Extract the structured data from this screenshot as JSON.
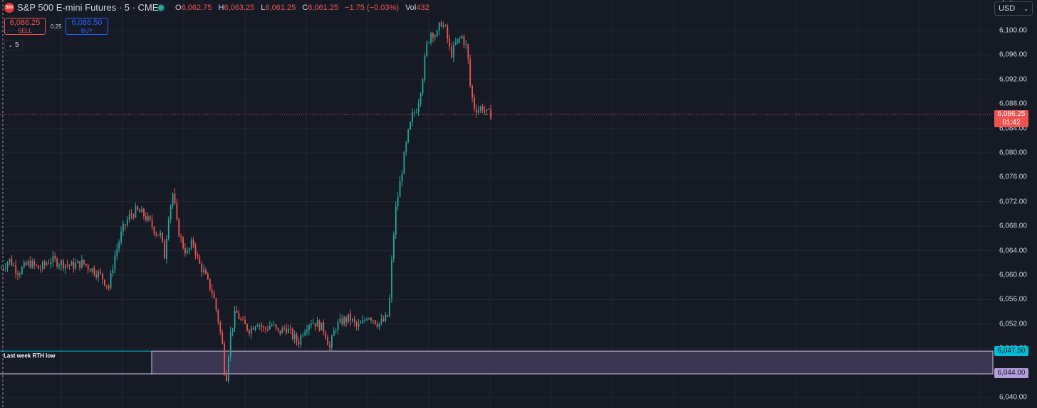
{
  "header": {
    "symbol_logo": "500",
    "title": "S&P 500 E-mini Futures · 5 · CME",
    "ohlc": {
      "o_key": "O",
      "o": "6,062.75",
      "h_key": "H",
      "h": "6,063.25",
      "l_key": "L",
      "l": "6,061.25",
      "c_key": "C",
      "c": "6,061.25",
      "change": "−1.75 (−0.03%)",
      "vol_key": "Vol",
      "vol": "432"
    }
  },
  "trade": {
    "sell_price": "6,086.25",
    "sell_label": "SELL",
    "buy_price": "6,086.50",
    "buy_label": "BUY",
    "spread": "0.25"
  },
  "interval_pill": {
    "icon": "chevron-down-icon",
    "value": "5"
  },
  "currency": {
    "selected": "USD",
    "icon": "chevron-down-icon"
  },
  "colors": {
    "up": "#26a69a",
    "down": "#ef5350",
    "background": "#161a25",
    "grid": "#232632",
    "zone_fill": "#3b3651",
    "zone_border": "#d1c4e9",
    "cyan": "#00bcd4",
    "lavender": "#b39ddb"
  },
  "price_axis": {
    "ticks": [
      "6,100.00",
      "6,096.00",
      "6,092.00",
      "6,088.00",
      "6,084.00",
      "6,080.00",
      "6,076.00",
      "6,072.00",
      "6,068.00",
      "6,064.00",
      "6,060.00",
      "6,056.00",
      "6,052.00",
      "6,048.00",
      "6,044.00",
      "6,040.00"
    ]
  },
  "current_price": {
    "price": "6,086.25",
    "countdown": "01:42"
  },
  "zone": {
    "label": "Last week RTH low",
    "upper_tag": "6,047.50",
    "lower_tag": "6,044.00"
  },
  "chart_data": {
    "type": "candlestick",
    "instrument": "S&P 500 E-mini Futures",
    "interval": "5",
    "exchange": "CME",
    "ylim": [
      6038.5,
      6105
    ],
    "last_price": 6086.25,
    "horizontal_levels": [
      6047.5,
      6044.0
    ],
    "close_path": [
      [
        0,
        6061.0
      ],
      [
        12,
        6062.5
      ],
      [
        25,
        6060.5
      ],
      [
        40,
        6062.0
      ],
      [
        55,
        6061.0
      ],
      [
        70,
        6062.5
      ],
      [
        85,
        6062.0
      ],
      [
        100,
        6061.5
      ],
      [
        115,
        6062.0
      ],
      [
        128,
        6061.0
      ],
      [
        140,
        6060.0
      ],
      [
        152,
        6058.0
      ],
      [
        160,
        6063.0
      ],
      [
        170,
        6067.0
      ],
      [
        180,
        6069.5
      ],
      [
        190,
        6070.5
      ],
      [
        200,
        6070.0
      ],
      [
        210,
        6068.5
      ],
      [
        218,
        6067.0
      ],
      [
        225,
        6066.5
      ],
      [
        230,
        6063.0
      ],
      [
        236,
        6070.0
      ],
      [
        242,
        6073.5
      ],
      [
        248,
        6068.0
      ],
      [
        255,
        6065.0
      ],
      [
        262,
        6063.5
      ],
      [
        270,
        6065.5
      ],
      [
        278,
        6062.0
      ],
      [
        285,
        6060.5
      ],
      [
        292,
        6058.5
      ],
      [
        298,
        6057.0
      ],
      [
        305,
        6053.0
      ],
      [
        312,
        6048.0
      ],
      [
        316,
        6042.0
      ],
      [
        322,
        6050.0
      ],
      [
        330,
        6054.0
      ],
      [
        340,
        6052.0
      ],
      [
        350,
        6051.0
      ],
      [
        360,
        6052.5
      ],
      [
        370,
        6051.0
      ],
      [
        380,
        6052.0
      ],
      [
        390,
        6050.5
      ],
      [
        400,
        6051.5
      ],
      [
        410,
        6050.0
      ],
      [
        418,
        6049.0
      ],
      [
        425,
        6051.0
      ],
      [
        435,
        6052.5
      ],
      [
        445,
        6052.0
      ],
      [
        455,
        6051.0
      ],
      [
        462,
        6048.0
      ],
      [
        470,
        6051.5
      ],
      [
        480,
        6052.5
      ],
      [
        490,
        6053.0
      ],
      [
        500,
        6051.5
      ],
      [
        508,
        6052.0
      ],
      [
        515,
        6053.5
      ],
      [
        522,
        6053.0
      ],
      [
        530,
        6052.0
      ],
      [
        538,
        6052.5
      ],
      [
        545,
        6053.5
      ],
      [
        550,
        6064.0
      ],
      [
        555,
        6071.0
      ],
      [
        560,
        6074.5
      ],
      [
        566,
        6079.0
      ],
      [
        572,
        6083.0
      ],
      [
        578,
        6086.0
      ],
      [
        585,
        6087.5
      ],
      [
        592,
        6092.0
      ],
      [
        598,
        6097.5
      ],
      [
        605,
        6100.0
      ],
      [
        612,
        6099.0
      ],
      [
        618,
        6101.5
      ],
      [
        625,
        6100.0
      ],
      [
        632,
        6096.0
      ],
      [
        640,
        6098.0
      ],
      [
        648,
        6099.0
      ],
      [
        655,
        6097.0
      ],
      [
        660,
        6090.0
      ],
      [
        665,
        6087.5
      ],
      [
        670,
        6087.0
      ],
      [
        676,
        6087.5
      ],
      [
        682,
        6086.5
      ],
      [
        688,
        6086.25
      ]
    ],
    "x_extent": [
      0,
      690
    ]
  }
}
